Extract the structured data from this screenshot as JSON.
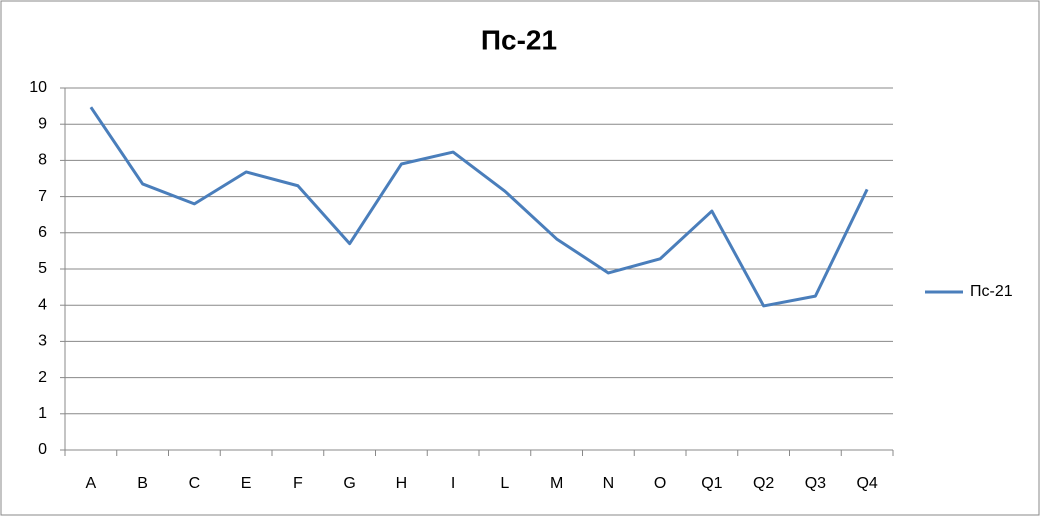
{
  "chart_data": {
    "type": "line",
    "title": "Пс-21",
    "categories": [
      "A",
      "B",
      "C",
      "E",
      "F",
      "G",
      "H",
      "I",
      "L",
      "M",
      "N",
      "O",
      "Q1",
      "Q2",
      "Q3",
      "Q4"
    ],
    "series": [
      {
        "name": "Пс-21",
        "color": "#4a7ebb",
        "values": [
          9.47,
          7.35,
          6.8,
          7.68,
          7.3,
          5.7,
          7.9,
          8.23,
          7.15,
          5.83,
          4.89,
          5.28,
          6.6,
          3.98,
          4.25,
          7.2
        ]
      }
    ],
    "ylim": [
      0,
      10
    ],
    "yticks": [
      0,
      1,
      2,
      3,
      4,
      5,
      6,
      7,
      8,
      9,
      10
    ],
    "grid": true,
    "legend": "right"
  }
}
